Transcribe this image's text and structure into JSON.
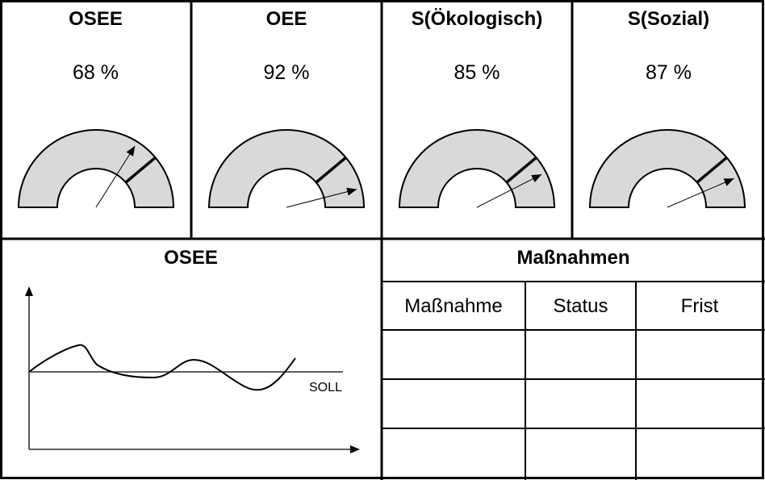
{
  "gauges": [
    {
      "title": "OSEE",
      "value_text": "68 %",
      "value": 68
    },
    {
      "title": "OEE",
      "value_text": "92 %",
      "value": 92
    },
    {
      "title": "S(Ökologisch)",
      "value_text": "85 %",
      "value": 85
    },
    {
      "title": "S(Sozial)",
      "value_text": "87 %",
      "value": 87
    }
  ],
  "trend": {
    "title": "OSEE",
    "target_label": "SOLL"
  },
  "measures": {
    "title": "Maßnahmen",
    "columns": [
      "Maßnahme",
      "Status",
      "Frist"
    ],
    "rows": [
      [
        "",
        "",
        ""
      ],
      [
        "",
        "",
        ""
      ],
      [
        "",
        "",
        ""
      ]
    ]
  }
}
